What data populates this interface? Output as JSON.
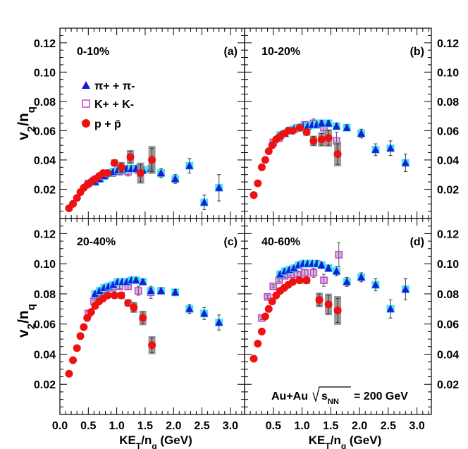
{
  "chart_data": {
    "type": "scatter",
    "xlabel": {
      "main": "KE",
      "sub": "T",
      "rest": "/n",
      "sub2": "q",
      "unit": " (GeV)"
    },
    "ylabel": {
      "main": "v",
      "sub": "2",
      "rest": "/n",
      "sub2": "q"
    },
    "xlim": [
      0,
      3.25
    ],
    "ylim": [
      0,
      0.13
    ],
    "xticks": [
      "0.0",
      "0.5",
      "1.0",
      "1.5",
      "2.0",
      "2.5",
      "3.0"
    ],
    "yticks": [
      "0.02",
      "0.04",
      "0.06",
      "0.08",
      "0.10",
      "0.12"
    ],
    "annotation": {
      "system": "Au+Au",
      "sqrt": "s",
      "sqrt_sub": "NN",
      "energy": "= 200 GeV"
    },
    "legend": [
      {
        "key": "pi",
        "label": "π+ + π-",
        "color": "#1a1adb",
        "marker": "triangle"
      },
      {
        "key": "k",
        "label": "K+ + K-",
        "color": "#cc33cc",
        "marker": "open-square"
      },
      {
        "key": "p",
        "label": "p + p̄",
        "color": "#ee1111",
        "marker": "circle"
      }
    ],
    "panels": [
      {
        "centrality": "0-10%",
        "tag": "(a)",
        "pi": [
          {
            "x": 0.62,
            "y": 0.025,
            "e": 0.001
          },
          {
            "x": 0.7,
            "y": 0.027,
            "e": 0.001
          },
          {
            "x": 0.78,
            "y": 0.029,
            "e": 0.001
          },
          {
            "x": 0.86,
            "y": 0.031,
            "e": 0.001
          },
          {
            "x": 0.94,
            "y": 0.032,
            "e": 0.001
          },
          {
            "x": 1.02,
            "y": 0.033,
            "e": 0.001
          },
          {
            "x": 1.1,
            "y": 0.033,
            "e": 0.0015
          },
          {
            "x": 1.18,
            "y": 0.034,
            "e": 0.0015
          },
          {
            "x": 1.26,
            "y": 0.034,
            "e": 0.002
          },
          {
            "x": 1.34,
            "y": 0.034,
            "e": 0.002
          },
          {
            "x": 1.46,
            "y": 0.033,
            "e": 0.0025
          },
          {
            "x": 1.6,
            "y": 0.034,
            "e": 0.003
          },
          {
            "x": 1.78,
            "y": 0.031,
            "e": 0.003
          },
          {
            "x": 2.03,
            "y": 0.027,
            "e": 0.003
          },
          {
            "x": 2.28,
            "y": 0.036,
            "e": 0.005
          },
          {
            "x": 2.54,
            "y": 0.011,
            "e": 0.005
          },
          {
            "x": 2.8,
            "y": 0.021,
            "e": 0.009
          }
        ],
        "k": [
          {
            "x": 0.5,
            "y": 0.024,
            "e": 0.001
          },
          {
            "x": 0.6,
            "y": 0.026,
            "e": 0.001
          },
          {
            "x": 0.7,
            "y": 0.028,
            "e": 0.001
          },
          {
            "x": 0.8,
            "y": 0.03,
            "e": 0.001
          },
          {
            "x": 0.92,
            "y": 0.031,
            "e": 0.0015
          },
          {
            "x": 1.05,
            "y": 0.032,
            "e": 0.002
          },
          {
            "x": 1.2,
            "y": 0.032,
            "e": 0.003
          },
          {
            "x": 1.38,
            "y": 0.033,
            "e": 0.004
          }
        ],
        "p": [
          {
            "x": 0.16,
            "y": 0.007,
            "e": 0.0005
          },
          {
            "x": 0.23,
            "y": 0.01,
            "e": 0.0005
          },
          {
            "x": 0.3,
            "y": 0.014,
            "e": 0.0005
          },
          {
            "x": 0.36,
            "y": 0.018,
            "e": 0.0005
          },
          {
            "x": 0.42,
            "y": 0.021,
            "e": 0.0006
          },
          {
            "x": 0.48,
            "y": 0.023,
            "e": 0.0007
          },
          {
            "x": 0.55,
            "y": 0.025,
            "e": 0.0008
          },
          {
            "x": 0.62,
            "y": 0.027,
            "e": 0.0009
          },
          {
            "x": 0.69,
            "y": 0.029,
            "e": 0.001
          },
          {
            "x": 0.76,
            "y": 0.031,
            "e": 0.001
          },
          {
            "x": 0.84,
            "y": 0.031,
            "e": 0.0012
          },
          {
            "x": 0.96,
            "y": 0.038,
            "e": 0.002
          },
          {
            "x": 1.08,
            "y": 0.035,
            "e": 0.003
          },
          {
            "x": 1.24,
            "y": 0.042,
            "e": 0.004
          },
          {
            "x": 1.42,
            "y": 0.031,
            "e": 0.006
          },
          {
            "x": 1.62,
            "y": 0.04,
            "e": 0.008
          }
        ]
      },
      {
        "centrality": "10-20%",
        "tag": "(b)",
        "pi": [
          {
            "x": 0.62,
            "y": 0.057,
            "e": 0.001
          },
          {
            "x": 0.7,
            "y": 0.058,
            "e": 0.001
          },
          {
            "x": 0.78,
            "y": 0.06,
            "e": 0.001
          },
          {
            "x": 0.86,
            "y": 0.061,
            "e": 0.001
          },
          {
            "x": 0.94,
            "y": 0.062,
            "e": 0.001
          },
          {
            "x": 1.02,
            "y": 0.063,
            "e": 0.001
          },
          {
            "x": 1.1,
            "y": 0.063,
            "e": 0.001
          },
          {
            "x": 1.18,
            "y": 0.064,
            "e": 0.0015
          },
          {
            "x": 1.26,
            "y": 0.064,
            "e": 0.0015
          },
          {
            "x": 1.34,
            "y": 0.065,
            "e": 0.002
          },
          {
            "x": 1.46,
            "y": 0.065,
            "e": 0.002
          },
          {
            "x": 1.6,
            "y": 0.063,
            "e": 0.002
          },
          {
            "x": 1.78,
            "y": 0.062,
            "e": 0.002
          },
          {
            "x": 2.03,
            "y": 0.058,
            "e": 0.003
          },
          {
            "x": 2.28,
            "y": 0.047,
            "e": 0.004
          },
          {
            "x": 2.54,
            "y": 0.048,
            "e": 0.005
          },
          {
            "x": 2.8,
            "y": 0.038,
            "e": 0.006
          }
        ],
        "k": [
          {
            "x": 0.5,
            "y": 0.052,
            "e": 0.001
          },
          {
            "x": 0.6,
            "y": 0.055,
            "e": 0.001
          },
          {
            "x": 0.7,
            "y": 0.058,
            "e": 0.001
          },
          {
            "x": 0.8,
            "y": 0.06,
            "e": 0.001
          },
          {
            "x": 0.92,
            "y": 0.062,
            "e": 0.0015
          },
          {
            "x": 1.05,
            "y": 0.064,
            "e": 0.002
          },
          {
            "x": 1.2,
            "y": 0.065,
            "e": 0.003
          },
          {
            "x": 1.38,
            "y": 0.062,
            "e": 0.004
          },
          {
            "x": 1.6,
            "y": 0.053,
            "e": 0.006
          }
        ],
        "p": [
          {
            "x": 0.16,
            "y": 0.016,
            "e": 0.0005
          },
          {
            "x": 0.23,
            "y": 0.024,
            "e": 0.0005
          },
          {
            "x": 0.3,
            "y": 0.035,
            "e": 0.0005
          },
          {
            "x": 0.36,
            "y": 0.04,
            "e": 0.0005
          },
          {
            "x": 0.42,
            "y": 0.046,
            "e": 0.0006
          },
          {
            "x": 0.48,
            "y": 0.05,
            "e": 0.0007
          },
          {
            "x": 0.55,
            "y": 0.054,
            "e": 0.0008
          },
          {
            "x": 0.62,
            "y": 0.056,
            "e": 0.0009
          },
          {
            "x": 0.69,
            "y": 0.058,
            "e": 0.001
          },
          {
            "x": 0.76,
            "y": 0.06,
            "e": 0.001
          },
          {
            "x": 0.84,
            "y": 0.06,
            "e": 0.0012
          },
          {
            "x": 0.96,
            "y": 0.062,
            "e": 0.002
          },
          {
            "x": 1.08,
            "y": 0.059,
            "e": 0.002
          },
          {
            "x": 1.2,
            "y": 0.053,
            "e": 0.003
          },
          {
            "x": 1.34,
            "y": 0.054,
            "e": 0.004
          },
          {
            "x": 1.46,
            "y": 0.055,
            "e": 0.005
          },
          {
            "x": 1.62,
            "y": 0.044,
            "e": 0.007
          }
        ]
      },
      {
        "centrality": "20-40%",
        "tag": "(c)",
        "pi": [
          {
            "x": 0.62,
            "y": 0.08,
            "e": 0.001
          },
          {
            "x": 0.7,
            "y": 0.082,
            "e": 0.001
          },
          {
            "x": 0.78,
            "y": 0.084,
            "e": 0.001
          },
          {
            "x": 0.86,
            "y": 0.085,
            "e": 0.001
          },
          {
            "x": 0.94,
            "y": 0.086,
            "e": 0.001
          },
          {
            "x": 1.02,
            "y": 0.088,
            "e": 0.001
          },
          {
            "x": 1.1,
            "y": 0.088,
            "e": 0.001
          },
          {
            "x": 1.18,
            "y": 0.088,
            "e": 0.001
          },
          {
            "x": 1.26,
            "y": 0.089,
            "e": 0.0012
          },
          {
            "x": 1.34,
            "y": 0.089,
            "e": 0.0015
          },
          {
            "x": 1.46,
            "y": 0.088,
            "e": 0.0015
          },
          {
            "x": 1.6,
            "y": 0.082,
            "e": 0.0018
          },
          {
            "x": 1.78,
            "y": 0.082,
            "e": 0.002
          },
          {
            "x": 2.03,
            "y": 0.081,
            "e": 0.002
          },
          {
            "x": 2.28,
            "y": 0.07,
            "e": 0.003
          },
          {
            "x": 2.54,
            "y": 0.067,
            "e": 0.004
          },
          {
            "x": 2.8,
            "y": 0.061,
            "e": 0.005
          }
        ],
        "k": [
          {
            "x": 0.5,
            "y": 0.067,
            "e": 0.001
          },
          {
            "x": 0.6,
            "y": 0.075,
            "e": 0.001
          },
          {
            "x": 0.7,
            "y": 0.08,
            "e": 0.001
          },
          {
            "x": 0.8,
            "y": 0.083,
            "e": 0.001
          },
          {
            "x": 0.92,
            "y": 0.084,
            "e": 0.0012
          },
          {
            "x": 1.05,
            "y": 0.085,
            "e": 0.0015
          },
          {
            "x": 1.2,
            "y": 0.085,
            "e": 0.002
          },
          {
            "x": 1.38,
            "y": 0.082,
            "e": 0.003
          },
          {
            "x": 1.6,
            "y": 0.081,
            "e": 0.004
          }
        ],
        "p": [
          {
            "x": 0.16,
            "y": 0.027,
            "e": 0.0005
          },
          {
            "x": 0.23,
            "y": 0.036,
            "e": 0.0005
          },
          {
            "x": 0.3,
            "y": 0.044,
            "e": 0.0005
          },
          {
            "x": 0.36,
            "y": 0.052,
            "e": 0.0005
          },
          {
            "x": 0.42,
            "y": 0.058,
            "e": 0.0006
          },
          {
            "x": 0.48,
            "y": 0.064,
            "e": 0.0007
          },
          {
            "x": 0.55,
            "y": 0.068,
            "e": 0.0008
          },
          {
            "x": 0.62,
            "y": 0.072,
            "e": 0.0009
          },
          {
            "x": 0.69,
            "y": 0.075,
            "e": 0.001
          },
          {
            "x": 0.76,
            "y": 0.077,
            "e": 0.001
          },
          {
            "x": 0.84,
            "y": 0.079,
            "e": 0.0012
          },
          {
            "x": 0.96,
            "y": 0.079,
            "e": 0.0015
          },
          {
            "x": 1.08,
            "y": 0.079,
            "e": 0.002
          },
          {
            "x": 1.2,
            "y": 0.074,
            "e": 0.002
          },
          {
            "x": 1.3,
            "y": 0.071,
            "e": 0.003
          },
          {
            "x": 1.46,
            "y": 0.064,
            "e": 0.004
          },
          {
            "x": 1.62,
            "y": 0.046,
            "e": 0.005
          }
        ]
      },
      {
        "centrality": "40-60%",
        "tag": "(d)",
        "pi": [
          {
            "x": 0.62,
            "y": 0.093,
            "e": 0.001
          },
          {
            "x": 0.7,
            "y": 0.095,
            "e": 0.001
          },
          {
            "x": 0.78,
            "y": 0.096,
            "e": 0.001
          },
          {
            "x": 0.86,
            "y": 0.097,
            "e": 0.001
          },
          {
            "x": 0.94,
            "y": 0.099,
            "e": 0.001
          },
          {
            "x": 1.02,
            "y": 0.1,
            "e": 0.001
          },
          {
            "x": 1.1,
            "y": 0.1,
            "e": 0.0012
          },
          {
            "x": 1.18,
            "y": 0.1,
            "e": 0.0015
          },
          {
            "x": 1.26,
            "y": 0.1,
            "e": 0.002
          },
          {
            "x": 1.34,
            "y": 0.099,
            "e": 0.002
          },
          {
            "x": 1.46,
            "y": 0.097,
            "e": 0.002
          },
          {
            "x": 1.6,
            "y": 0.095,
            "e": 0.003
          },
          {
            "x": 1.78,
            "y": 0.088,
            "e": 0.003
          },
          {
            "x": 2.03,
            "y": 0.091,
            "e": 0.003
          },
          {
            "x": 2.28,
            "y": 0.086,
            "e": 0.004
          },
          {
            "x": 2.54,
            "y": 0.07,
            "e": 0.006
          },
          {
            "x": 2.8,
            "y": 0.083,
            "e": 0.007
          }
        ],
        "k": [
          {
            "x": 0.3,
            "y": 0.064,
            "e": 0.001
          },
          {
            "x": 0.4,
            "y": 0.078,
            "e": 0.001
          },
          {
            "x": 0.5,
            "y": 0.085,
            "e": 0.001
          },
          {
            "x": 0.6,
            "y": 0.089,
            "e": 0.001
          },
          {
            "x": 0.7,
            "y": 0.092,
            "e": 0.001
          },
          {
            "x": 0.8,
            "y": 0.093,
            "e": 0.0012
          },
          {
            "x": 0.92,
            "y": 0.093,
            "e": 0.0015
          },
          {
            "x": 1.05,
            "y": 0.094,
            "e": 0.002
          },
          {
            "x": 1.2,
            "y": 0.094,
            "e": 0.003
          },
          {
            "x": 1.38,
            "y": 0.089,
            "e": 0.004
          },
          {
            "x": 1.64,
            "y": 0.106,
            "e": 0.008
          }
        ],
        "p": [
          {
            "x": 0.16,
            "y": 0.037,
            "e": 0.0005
          },
          {
            "x": 0.23,
            "y": 0.047,
            "e": 0.0005
          },
          {
            "x": 0.3,
            "y": 0.055,
            "e": 0.0005
          },
          {
            "x": 0.36,
            "y": 0.065,
            "e": 0.0005
          },
          {
            "x": 0.42,
            "y": 0.07,
            "e": 0.0006
          },
          {
            "x": 0.48,
            "y": 0.075,
            "e": 0.0007
          },
          {
            "x": 0.55,
            "y": 0.079,
            "e": 0.0008
          },
          {
            "x": 0.62,
            "y": 0.082,
            "e": 0.0009
          },
          {
            "x": 0.69,
            "y": 0.084,
            "e": 0.001
          },
          {
            "x": 0.76,
            "y": 0.086,
            "e": 0.001
          },
          {
            "x": 0.84,
            "y": 0.088,
            "e": 0.0012
          },
          {
            "x": 0.96,
            "y": 0.089,
            "e": 0.0015
          },
          {
            "x": 1.08,
            "y": 0.089,
            "e": 0.002
          },
          {
            "x": 1.3,
            "y": 0.076,
            "e": 0.004
          },
          {
            "x": 1.46,
            "y": 0.073,
            "e": 0.006
          },
          {
            "x": 1.62,
            "y": 0.069,
            "e": 0.008
          }
        ]
      }
    ]
  }
}
